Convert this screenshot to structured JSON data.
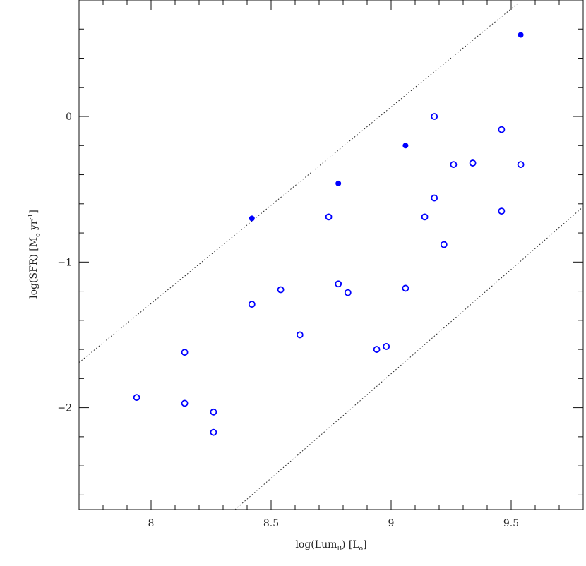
{
  "chart_data": {
    "type": "scatter",
    "xlabel": {
      "main": "log(Lum",
      "sub": "B",
      "suffix": ") [L",
      "sub2": "o",
      "end": "]"
    },
    "ylabel": {
      "main": "log(SFR) [M",
      "sub": "o",
      "suffix": " yr",
      "sup": "-1",
      "end": "]"
    },
    "xlim": [
      7.7,
      9.8
    ],
    "ylim": [
      -2.7,
      0.8
    ],
    "x_ticks": [
      8,
      8.5,
      9,
      9.5
    ],
    "x_tick_labels": [
      "8",
      "8.5",
      "9",
      "9.5"
    ],
    "y_ticks": [
      -2,
      -1,
      0
    ],
    "y_tick_labels": [
      "−2",
      "−1",
      "0"
    ],
    "x_minor_step": 0.1,
    "y_minor_step": 0.2,
    "grid": false,
    "marker_color": "#0000ff",
    "series": [
      {
        "marker": "filled-circle",
        "points": [
          [
            8.42,
            -0.7
          ],
          [
            8.78,
            -0.46
          ],
          [
            9.06,
            -0.2
          ],
          [
            9.54,
            0.56
          ]
        ]
      },
      {
        "marker": "open-circle",
        "points": [
          [
            7.94,
            -1.93
          ],
          [
            8.14,
            -1.62
          ],
          [
            8.14,
            -1.97
          ],
          [
            8.26,
            -2.03
          ],
          [
            8.26,
            -2.17
          ],
          [
            8.42,
            -1.29
          ],
          [
            8.54,
            -1.19
          ],
          [
            8.62,
            -1.5
          ],
          [
            8.74,
            -0.69
          ],
          [
            8.78,
            -1.15
          ],
          [
            8.82,
            -1.21
          ],
          [
            8.94,
            -1.6
          ],
          [
            8.98,
            -1.58
          ],
          [
            9.06,
            -1.18
          ],
          [
            9.14,
            -0.69
          ],
          [
            9.18,
            0.0
          ],
          [
            9.18,
            -0.56
          ],
          [
            9.22,
            -0.88
          ],
          [
            9.26,
            -0.33
          ],
          [
            9.34,
            -0.32
          ],
          [
            9.46,
            -0.09
          ],
          [
            9.46,
            -0.65
          ],
          [
            9.54,
            -0.33
          ]
        ]
      }
    ],
    "reference_lines": [
      {
        "style": "dotted",
        "points": [
          [
            7.7,
            -1.69
          ],
          [
            9.53,
            0.78
          ]
        ]
      },
      {
        "style": "dotted",
        "points": [
          [
            8.35,
            -2.7
          ],
          [
            9.8,
            -0.62
          ]
        ]
      }
    ]
  }
}
